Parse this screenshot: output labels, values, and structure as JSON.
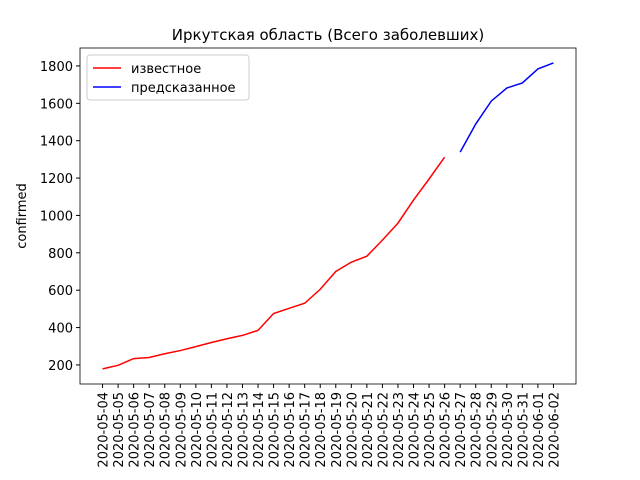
{
  "chart_data": {
    "type": "line",
    "title": "Иркутская область (Всего заболевших)",
    "y_label": "confirmed",
    "categories": [
      "2020-05-04",
      "2020-05-05",
      "2020-05-06",
      "2020-05-07",
      "2020-05-08",
      "2020-05-09",
      "2020-05-10",
      "2020-05-11",
      "2020-05-12",
      "2020-05-13",
      "2020-05-14",
      "2020-05-15",
      "2020-05-16",
      "2020-05-17",
      "2020-05-18",
      "2020-05-19",
      "2020-05-20",
      "2020-05-21",
      "2020-05-22",
      "2020-05-23",
      "2020-05-24",
      "2020-05-25",
      "2020-05-26",
      "2020-05-27",
      "2020-05-28",
      "2020-05-29",
      "2020-05-30",
      "2020-05-31",
      "2020-06-01",
      "2020-06-02"
    ],
    "series": [
      {
        "name": "известное",
        "color": "#ff0000",
        "values": [
          179,
          198,
          234,
          240,
          260,
          277,
          298,
          320,
          340,
          358,
          385,
          475,
          503,
          530,
          605,
          700,
          750,
          782,
          868,
          959,
          1082,
          1195,
          1312,
          null,
          null,
          null,
          null,
          null,
          null,
          null
        ]
      },
      {
        "name": "предсказанное",
        "color": "#0000ff",
        "values": [
          null,
          null,
          null,
          null,
          null,
          null,
          null,
          null,
          null,
          null,
          null,
          null,
          null,
          null,
          null,
          null,
          null,
          null,
          null,
          null,
          null,
          null,
          null,
          1339,
          1489,
          1612,
          1682,
          1709,
          1784,
          1816
        ]
      }
    ],
    "ylim": [
      98,
      1896
    ],
    "yticks": [
      200,
      400,
      600,
      800,
      1000,
      1200,
      1400,
      1600,
      1800
    ],
    "legend": "upper left"
  }
}
